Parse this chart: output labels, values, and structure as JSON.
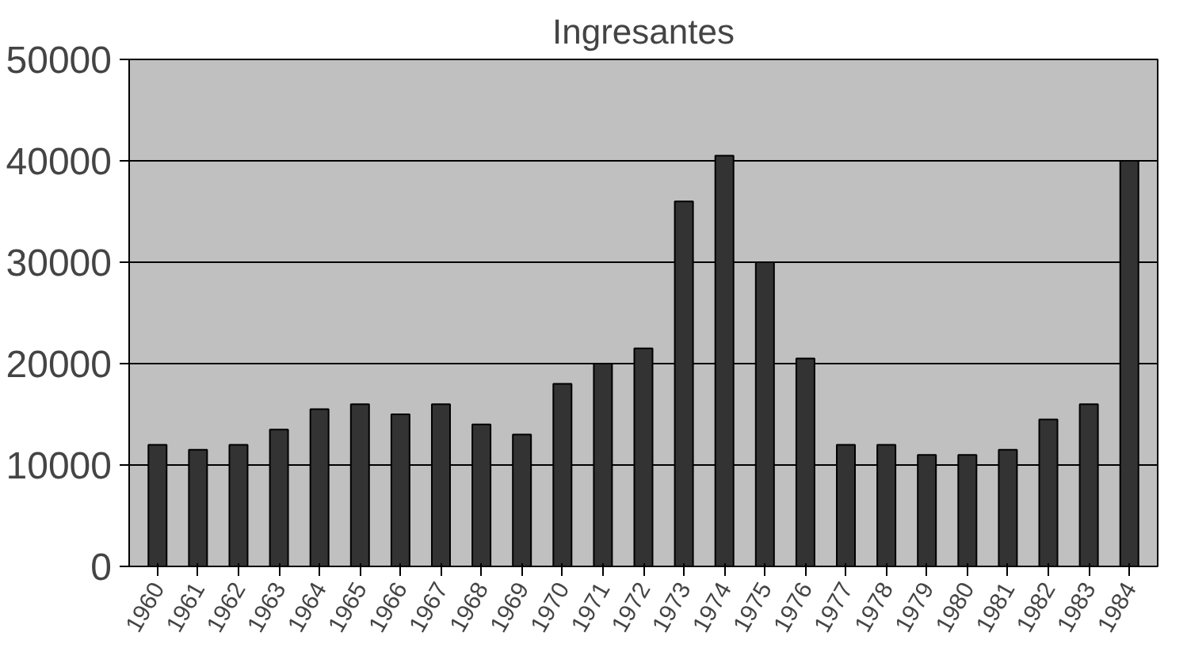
{
  "chart_data": {
    "type": "bar",
    "title": "Ingresantes",
    "categories": [
      "1960",
      "1961",
      "1962",
      "1963",
      "1964",
      "1965",
      "1966",
      "1967",
      "1968",
      "1969",
      "1970",
      "1971",
      "1972",
      "1973",
      "1974",
      "1975",
      "1976",
      "1977",
      "1978",
      "1979",
      "1980",
      "1981",
      "1982",
      "1983",
      "1984"
    ],
    "values": [
      12000,
      11500,
      12000,
      13500,
      15500,
      16000,
      15000,
      16000,
      14000,
      13000,
      18000,
      20000,
      21500,
      36000,
      40500,
      30000,
      20500,
      12000,
      12000,
      11000,
      11000,
      11500,
      14500,
      16000,
      40000
    ],
    "color": "#333333",
    "ylim": [
      0,
      50000
    ],
    "yticks": [
      0,
      10000,
      20000,
      30000,
      40000,
      50000
    ],
    "grid": "y"
  }
}
